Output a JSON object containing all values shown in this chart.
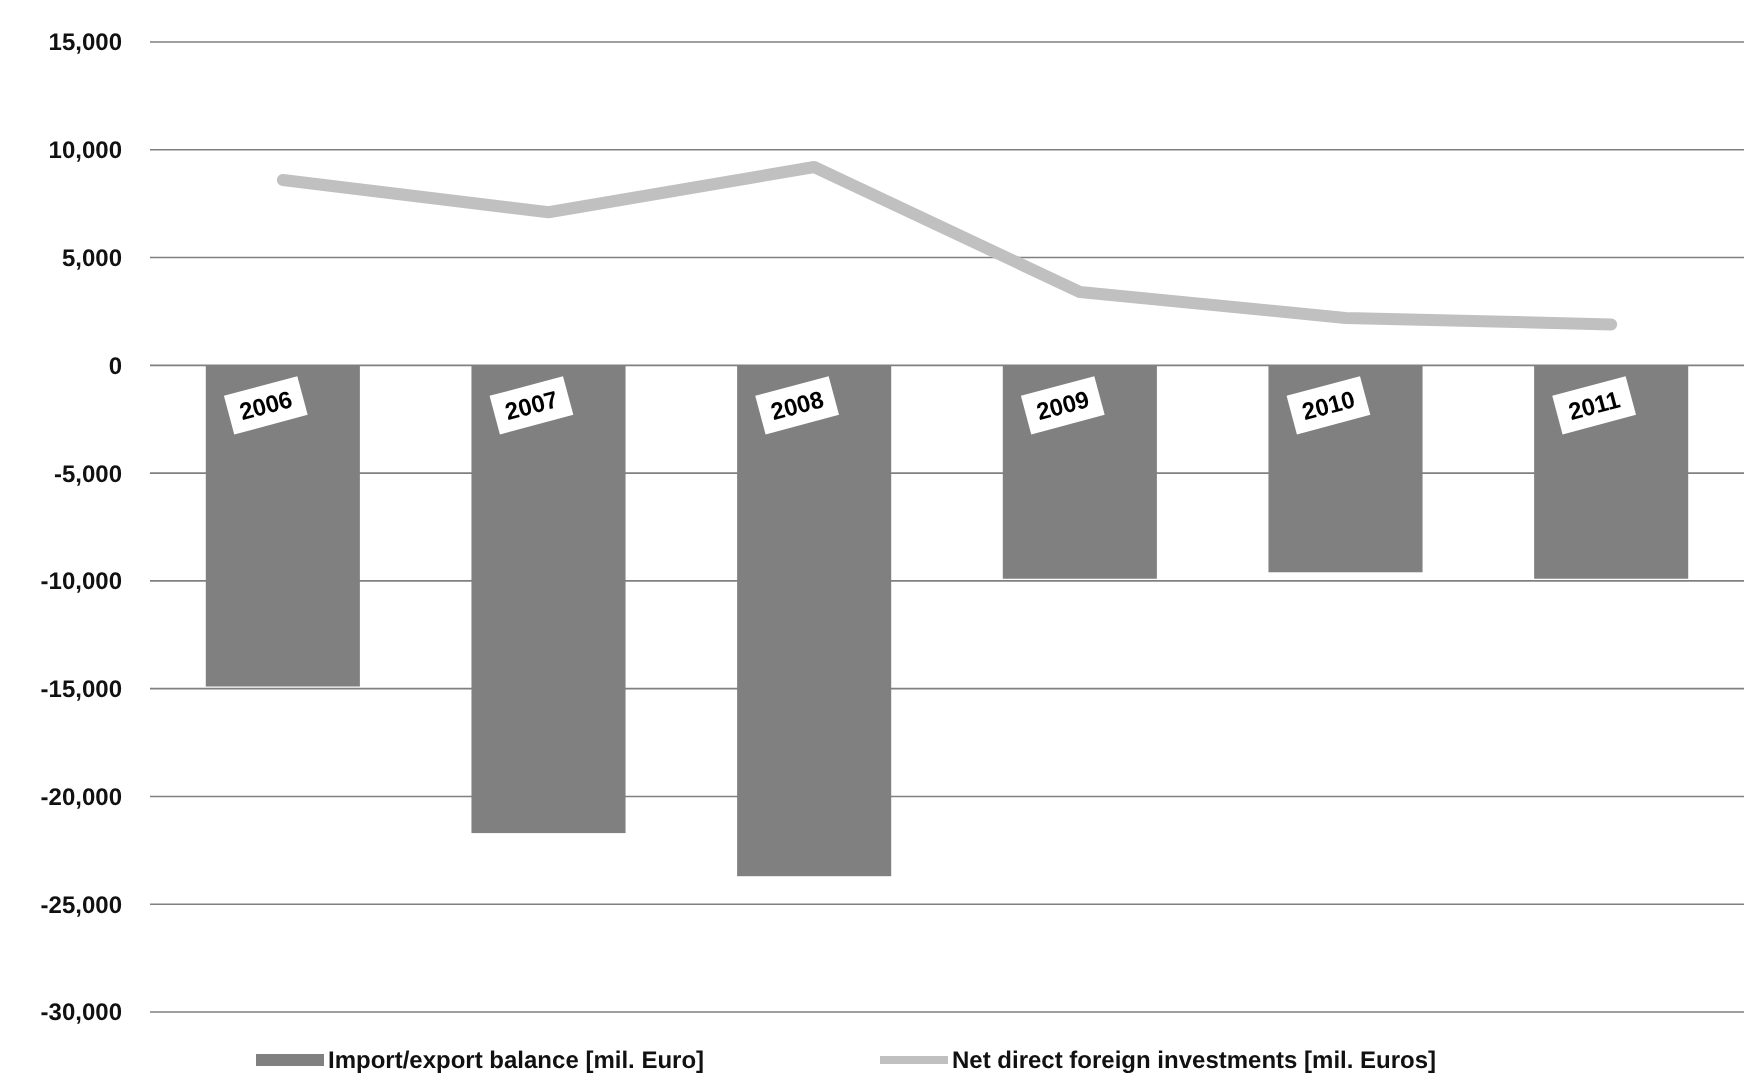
{
  "chart_data": {
    "type": "bar",
    "categories": [
      "2006",
      "2007",
      "2008",
      "2009",
      "2010",
      "2011"
    ],
    "series": [
      {
        "name": "Import/export balance [mil. Euro]",
        "color": "#808080",
        "values": [
          -14900,
          -21700,
          -23700,
          -9900,
          -9600,
          -9900
        ]
      },
      {
        "name": "Net direct foreign investments [mil. Euros]",
        "type": "line",
        "color": "#c0c0c0",
        "values": [
          8600,
          7100,
          9200,
          3400,
          2200,
          1900
        ]
      }
    ],
    "ylim": [
      -30000,
      15000
    ],
    "yticks": [
      {
        "value": -30000,
        "label": "-30,000"
      },
      {
        "value": -25000,
        "label": "-25,000"
      },
      {
        "value": -20000,
        "label": "-20,000"
      },
      {
        "value": -15000,
        "label": "-15,000"
      },
      {
        "value": -10000,
        "label": "-10,000"
      },
      {
        "value": -5000,
        "label": "-5,000"
      },
      0,
      {
        "value": 5000,
        "label": "5,000"
      },
      {
        "value": 10000,
        "label": "10,000"
      },
      {
        "value": 15000,
        "label": "15,000"
      }
    ],
    "grid": "y",
    "legend": "bottom"
  }
}
